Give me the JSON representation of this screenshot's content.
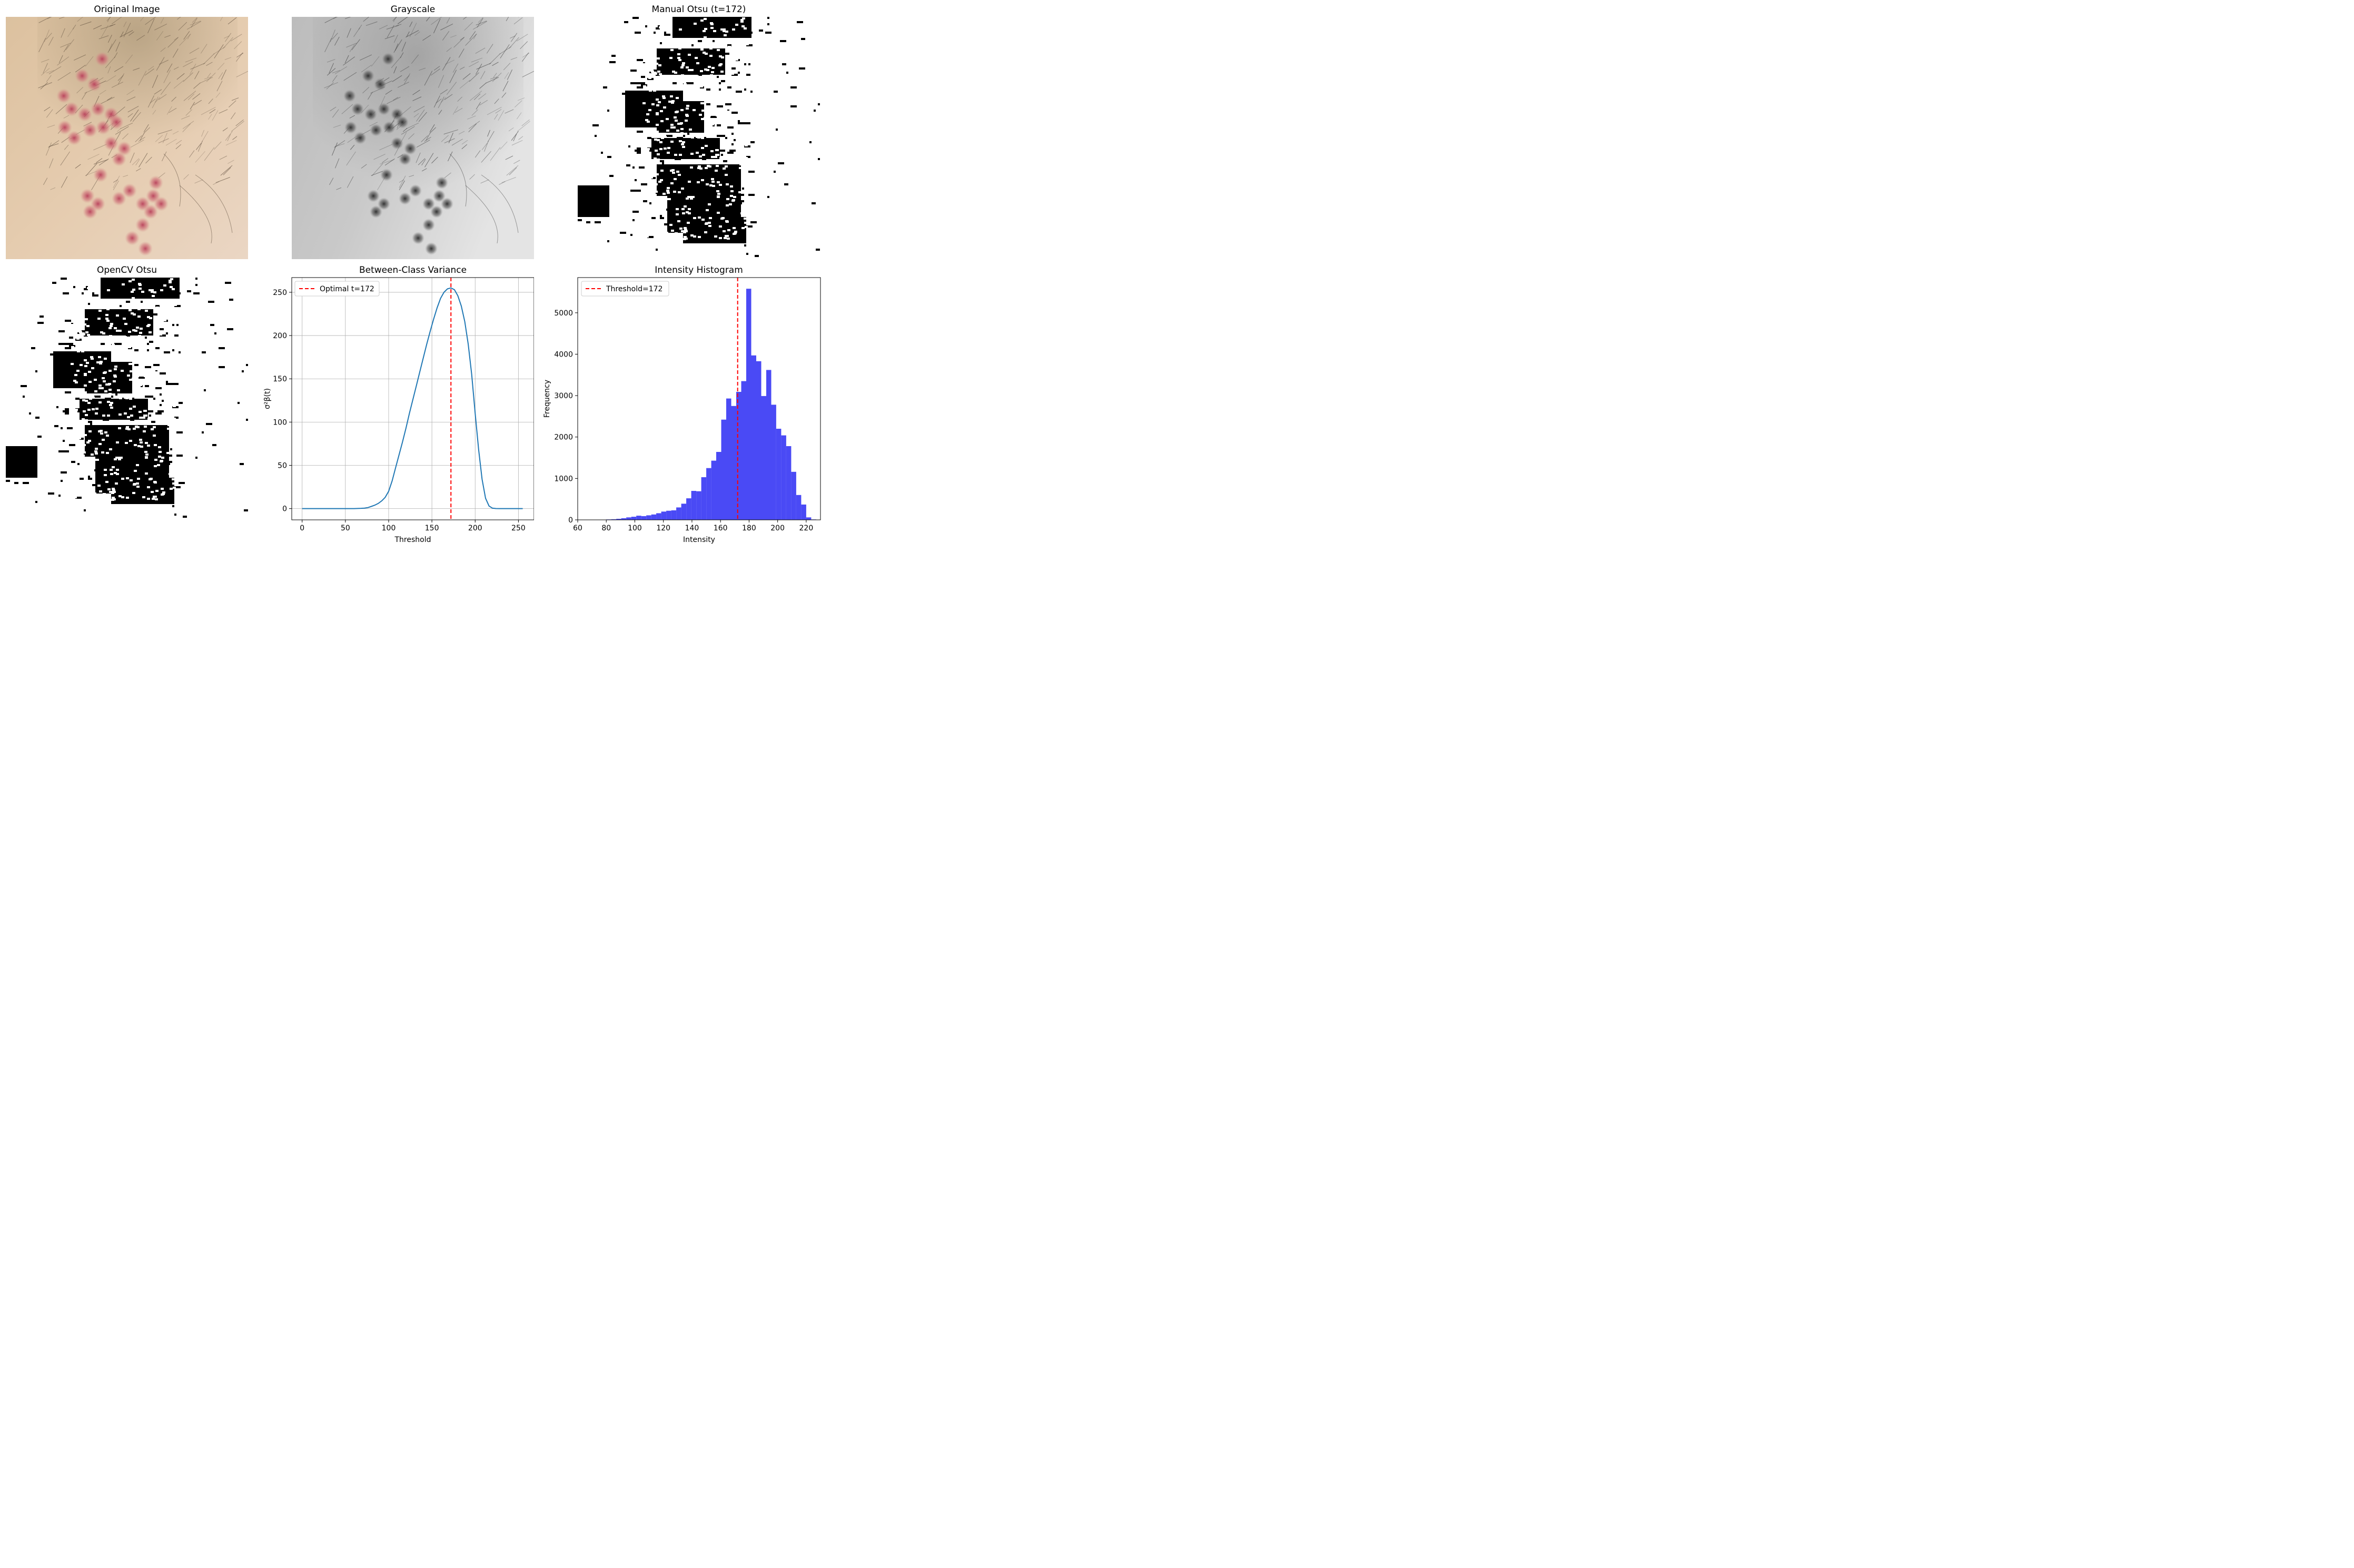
{
  "panels": {
    "original": {
      "title": "Original Image"
    },
    "grayscale": {
      "title": "Grayscale"
    },
    "manual_otsu": {
      "title": "Manual Otsu (t=172)"
    },
    "opencv_otsu": {
      "title": "OpenCV Otsu"
    },
    "variance": {
      "title": "Between-Class Variance"
    },
    "histogram": {
      "title": "Intensity Histogram"
    }
  },
  "colors": {
    "curve": "#1f77b4",
    "threshold_line": "#ff0000",
    "bars": "#4a4af5",
    "skin": "#e2c9ae",
    "lesion": "#c0505a",
    "hair": "#5a4a3a"
  },
  "chart_data": [
    {
      "type": "line",
      "title": "Between-Class Variance",
      "xlabel": "Threshold",
      "ylabel": "σ²β(t)",
      "xlim": [
        -12,
        268
      ],
      "ylim": [
        -13,
        267
      ],
      "xticks": [
        0,
        50,
        100,
        150,
        200,
        250
      ],
      "yticks": [
        0,
        50,
        100,
        150,
        200,
        250
      ],
      "grid": true,
      "legend": {
        "placement": "top-left",
        "entries": [
          "Optimal t=172"
        ]
      },
      "threshold": 172,
      "series": [
        {
          "x": [
            0,
            60,
            68,
            72,
            76,
            80,
            84,
            88,
            92,
            96,
            100,
            104,
            108,
            112,
            116,
            120,
            124,
            128,
            132,
            136,
            140,
            144,
            148,
            152,
            156,
            160,
            164,
            168,
            172,
            176,
            180,
            184,
            188,
            192,
            196,
            200,
            204,
            208,
            212,
            216,
            220,
            224,
            228,
            235,
            255
          ],
          "y": [
            0,
            0,
            0.3,
            0.6,
            1.2,
            2.5,
            4,
            6,
            9,
            13,
            20,
            32,
            47,
            62,
            77,
            93,
            110,
            126,
            142,
            158,
            174,
            190,
            205,
            219,
            232,
            243,
            250,
            254,
            255,
            253,
            246,
            234,
            216,
            190,
            155,
            110,
            68,
            34,
            12,
            3,
            0.5,
            0.1,
            0,
            0,
            0
          ]
        }
      ]
    },
    {
      "type": "bar",
      "title": "Intensity Histogram",
      "xlabel": "Intensity",
      "ylabel": "Frequency",
      "xlim": [
        60,
        230
      ],
      "ylim": [
        0,
        5850
      ],
      "xticks": [
        60,
        80,
        100,
        120,
        140,
        160,
        180,
        200,
        220
      ],
      "yticks": [
        0,
        1000,
        2000,
        3000,
        4000,
        5000
      ],
      "grid": false,
      "legend": {
        "placement": "top-left",
        "entries": [
          "Threshold=172"
        ]
      },
      "threshold": 172,
      "bin_width": 3.5,
      "bin_start": [
        80.0,
        83.5,
        87.0,
        90.5,
        94.0,
        97.5,
        101.0,
        104.5,
        108.0,
        111.5,
        115.0,
        118.5,
        122.0,
        125.5,
        129.0,
        132.5,
        136.0,
        139.5,
        143.0,
        146.5,
        150.0,
        153.5,
        157.0,
        160.5,
        164.0,
        167.5,
        171.0,
        174.5,
        178.0,
        181.5,
        185.0,
        188.5,
        192.0,
        195.5,
        199.0,
        202.5,
        206.0,
        209.5,
        213.0,
        216.5,
        220.0,
        223.5
      ],
      "values": [
        10,
        15,
        25,
        40,
        60,
        75,
        100,
        90,
        110,
        130,
        160,
        200,
        220,
        230,
        300,
        390,
        520,
        700,
        690,
        1030,
        1250,
        1430,
        1640,
        2420,
        2930,
        2750,
        3090,
        3350,
        5580,
        3970,
        3830,
        2990,
        3620,
        2780,
        2200,
        2040,
        1780,
        1160,
        600,
        370,
        60,
        10
      ]
    }
  ]
}
